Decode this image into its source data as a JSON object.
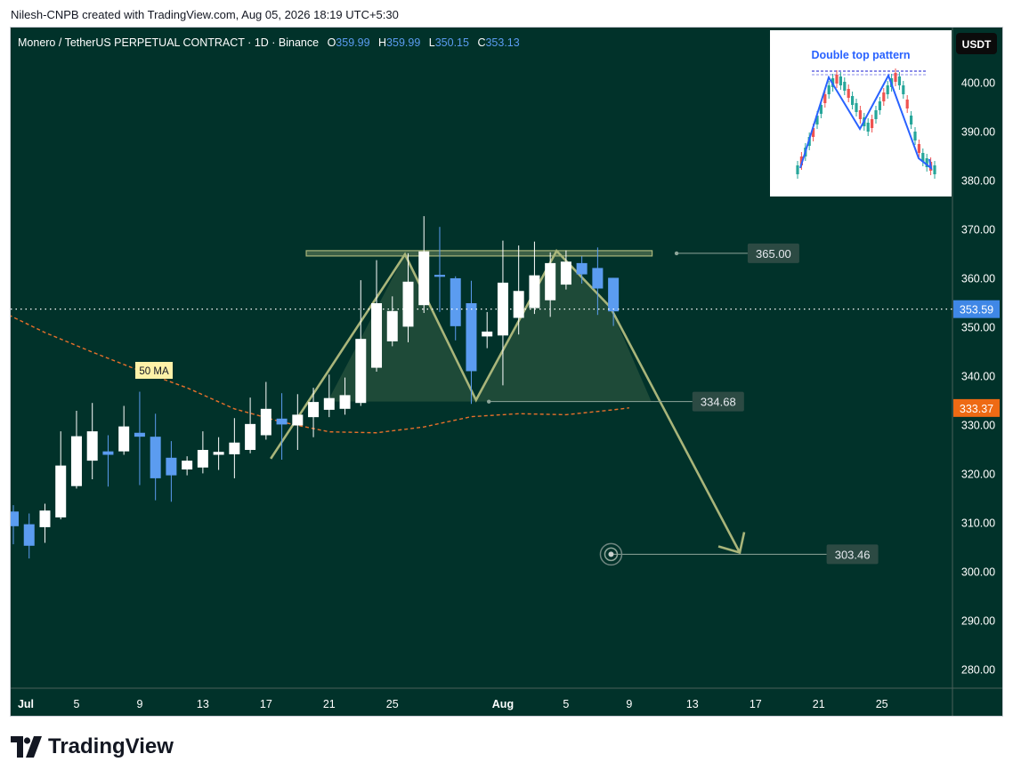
{
  "header": {
    "attribution": "Nilesh-CNPB created with TradingView.com, Aug 05, 2026 18:19 UTC+5:30"
  },
  "legend": {
    "symbol": "Monero / TetherUS PERPETUAL CONTRACT · 1D · Binance",
    "o_label": "O",
    "o_value": "359.99",
    "h_label": "H",
    "h_value": "359.99",
    "l_label": "L",
    "l_value": "350.15",
    "c_label": "C",
    "c_value": "353.13"
  },
  "currency_button": "USDT",
  "inset_title": "Double top pattern",
  "brand": "TradingView",
  "colors": {
    "background": "#01322a",
    "bull": "#ffffff",
    "bear": "#5b9cf0",
    "pattern": "#a9b57a",
    "ma": "#e8702a",
    "price_label": "#3f87e6",
    "ma_label": "#ee6a14"
  },
  "chart_data": {
    "type": "candlestick",
    "ylim": [
      275,
      410
    ],
    "y_ticks": [
      "400.00",
      "390.00",
      "380.00",
      "370.00",
      "360.00",
      "350.00",
      "340.00",
      "330.00",
      "320.00",
      "310.00",
      "300.00",
      "290.00",
      "280.00"
    ],
    "x_ticks": [
      {
        "label": "Jul",
        "day": 0
      },
      {
        "label": "5",
        "day": 4
      },
      {
        "label": "9",
        "day": 8
      },
      {
        "label": "13",
        "day": 12
      },
      {
        "label": "17",
        "day": 16
      },
      {
        "label": "21",
        "day": 20
      },
      {
        "label": "25",
        "day": 24
      },
      {
        "label": "Aug",
        "day": 31
      },
      {
        "label": "5",
        "day": 35
      },
      {
        "label": "9",
        "day": 39
      },
      {
        "label": "13",
        "day": 43
      },
      {
        "label": "17",
        "day": 47
      },
      {
        "label": "21",
        "day": 51
      },
      {
        "label": "25",
        "day": 55
      }
    ],
    "candles": [
      {
        "day": 0,
        "o": 312.2,
        "h": 313.5,
        "l": 305.5,
        "c": 309.2
      },
      {
        "day": 1,
        "o": 309.6,
        "h": 311.8,
        "l": 302.6,
        "c": 305.2
      },
      {
        "day": 2,
        "o": 309.0,
        "h": 313.8,
        "l": 305.8,
        "c": 312.4
      },
      {
        "day": 3,
        "o": 311.0,
        "h": 328.6,
        "l": 310.6,
        "c": 321.6
      },
      {
        "day": 4,
        "o": 317.4,
        "h": 332.8,
        "l": 316.9,
        "c": 327.6
      },
      {
        "day": 5,
        "o": 322.6,
        "h": 334.4,
        "l": 318.8,
        "c": 328.6
      },
      {
        "day": 6,
        "o": 324.5,
        "h": 327.8,
        "l": 317.3,
        "c": 323.8
      },
      {
        "day": 7,
        "o": 324.5,
        "h": 333.8,
        "l": 323.8,
        "c": 329.6
      },
      {
        "day": 8,
        "o": 328.3,
        "h": 336.7,
        "l": 317.6,
        "c": 327.5
      },
      {
        "day": 9,
        "o": 327.5,
        "h": 332.2,
        "l": 314.5,
        "c": 319.0
      },
      {
        "day": 10,
        "o": 323.2,
        "h": 326.6,
        "l": 314.2,
        "c": 319.6
      },
      {
        "day": 11,
        "o": 320.8,
        "h": 323.5,
        "l": 319.6,
        "c": 322.6
      },
      {
        "day": 12,
        "o": 321.2,
        "h": 328.6,
        "l": 320.0,
        "c": 324.8
      },
      {
        "day": 13,
        "o": 323.8,
        "h": 327.4,
        "l": 320.7,
        "c": 324.4
      },
      {
        "day": 14,
        "o": 323.9,
        "h": 331.3,
        "l": 319.0,
        "c": 326.3
      },
      {
        "day": 15,
        "o": 324.8,
        "h": 335.5,
        "l": 324.1,
        "c": 330.1
      },
      {
        "day": 16,
        "o": 327.8,
        "h": 338.7,
        "l": 326.9,
        "c": 333.2
      },
      {
        "day": 17,
        "o": 331.2,
        "h": 336.4,
        "l": 322.8,
        "c": 330.0
      },
      {
        "day": 18,
        "o": 329.8,
        "h": 336.2,
        "l": 324.8,
        "c": 332.0
      },
      {
        "day": 19,
        "o": 331.5,
        "h": 337.5,
        "l": 327.4,
        "c": 334.6
      },
      {
        "day": 20,
        "o": 333.0,
        "h": 340.2,
        "l": 331.5,
        "c": 335.4
      },
      {
        "day": 21,
        "o": 333.2,
        "h": 339.6,
        "l": 332.0,
        "c": 336.0
      },
      {
        "day": 22,
        "o": 334.4,
        "h": 359.5,
        "l": 333.8,
        "c": 347.5
      },
      {
        "day": 23,
        "o": 341.6,
        "h": 363.6,
        "l": 340.8,
        "c": 354.8
      },
      {
        "day": 24,
        "o": 347.0,
        "h": 356.2,
        "l": 346.0,
        "c": 353.2
      },
      {
        "day": 25,
        "o": 350.0,
        "h": 365.0,
        "l": 346.8,
        "c": 359.2
      },
      {
        "day": 26,
        "o": 354.4,
        "h": 372.6,
        "l": 352.8,
        "c": 365.4
      },
      {
        "day": 27,
        "o": 360.6,
        "h": 370.4,
        "l": 353.0,
        "c": 360.2
      },
      {
        "day": 28,
        "o": 359.9,
        "h": 360.3,
        "l": 347.2,
        "c": 350.1
      },
      {
        "day": 29,
        "o": 354.8,
        "h": 359.4,
        "l": 334.2,
        "c": 340.9
      },
      {
        "day": 30,
        "o": 348.0,
        "h": 353.0,
        "l": 345.6,
        "c": 349.0
      },
      {
        "day": 31,
        "o": 348.2,
        "h": 367.6,
        "l": 338.0,
        "c": 359.0
      },
      {
        "day": 32,
        "o": 351.8,
        "h": 366.6,
        "l": 348.4,
        "c": 357.3
      },
      {
        "day": 33,
        "o": 353.8,
        "h": 367.4,
        "l": 352.6,
        "c": 360.5
      },
      {
        "day": 34,
        "o": 355.4,
        "h": 365.2,
        "l": 352.0,
        "c": 363.0
      },
      {
        "day": 35,
        "o": 358.6,
        "h": 365.6,
        "l": 357.6,
        "c": 363.3
      },
      {
        "day": 36,
        "o": 363.0,
        "h": 364.4,
        "l": 358.8,
        "c": 360.7
      },
      {
        "day": 37,
        "o": 362.0,
        "h": 366.2,
        "l": 352.4,
        "c": 357.8
      },
      {
        "day": 38,
        "o": 359.99,
        "h": 359.99,
        "l": 350.15,
        "c": 353.13
      }
    ],
    "moving_average": {
      "label": "50 MA",
      "points": [
        {
          "day": -1,
          "v": 353.5
        },
        {
          "day": 2,
          "v": 348.8
        },
        {
          "day": 5,
          "v": 344.8
        },
        {
          "day": 8,
          "v": 341.0
        },
        {
          "day": 11,
          "v": 337.5
        },
        {
          "day": 14,
          "v": 333.2
        },
        {
          "day": 17,
          "v": 330.5
        },
        {
          "day": 20,
          "v": 328.5
        },
        {
          "day": 23,
          "v": 328.3
        },
        {
          "day": 26,
          "v": 329.5
        },
        {
          "day": 29,
          "v": 331.6
        },
        {
          "day": 32,
          "v": 332.2
        },
        {
          "day": 35,
          "v": 332.0
        },
        {
          "day": 38,
          "v": 333.0
        },
        {
          "day": 39,
          "v": 333.4
        }
      ],
      "value_label": "333.37"
    },
    "last_price": {
      "value": 353.59,
      "label": "353.59"
    },
    "pattern": {
      "points": [
        {
          "day": 16.3,
          "v": 323.0
        },
        {
          "day": 24.8,
          "v": 364.8
        },
        {
          "day": 29.3,
          "v": 335.0
        },
        {
          "day": 34.4,
          "v": 365.5
        },
        {
          "day": 37.8,
          "v": 354.0
        }
      ],
      "resistance": {
        "day_start": 19,
        "day_end": 40,
        "v": 365.0
      },
      "projection": {
        "from_day": 37.8,
        "from_v": 354.0,
        "to_day": 46,
        "to_v": 303.8
      }
    },
    "levels": [
      {
        "value": 365.0,
        "label": "365.00",
        "day_start": 42,
        "day_end": 46.5
      },
      {
        "value": 334.68,
        "label": "334.68",
        "day_start": 30,
        "day_end": 43
      },
      {
        "value": 303.46,
        "label": "303.46",
        "day_start": 38,
        "day_end": 51.5
      }
    ],
    "target_marker": {
      "day": 37.85,
      "v": 303.46
    }
  }
}
